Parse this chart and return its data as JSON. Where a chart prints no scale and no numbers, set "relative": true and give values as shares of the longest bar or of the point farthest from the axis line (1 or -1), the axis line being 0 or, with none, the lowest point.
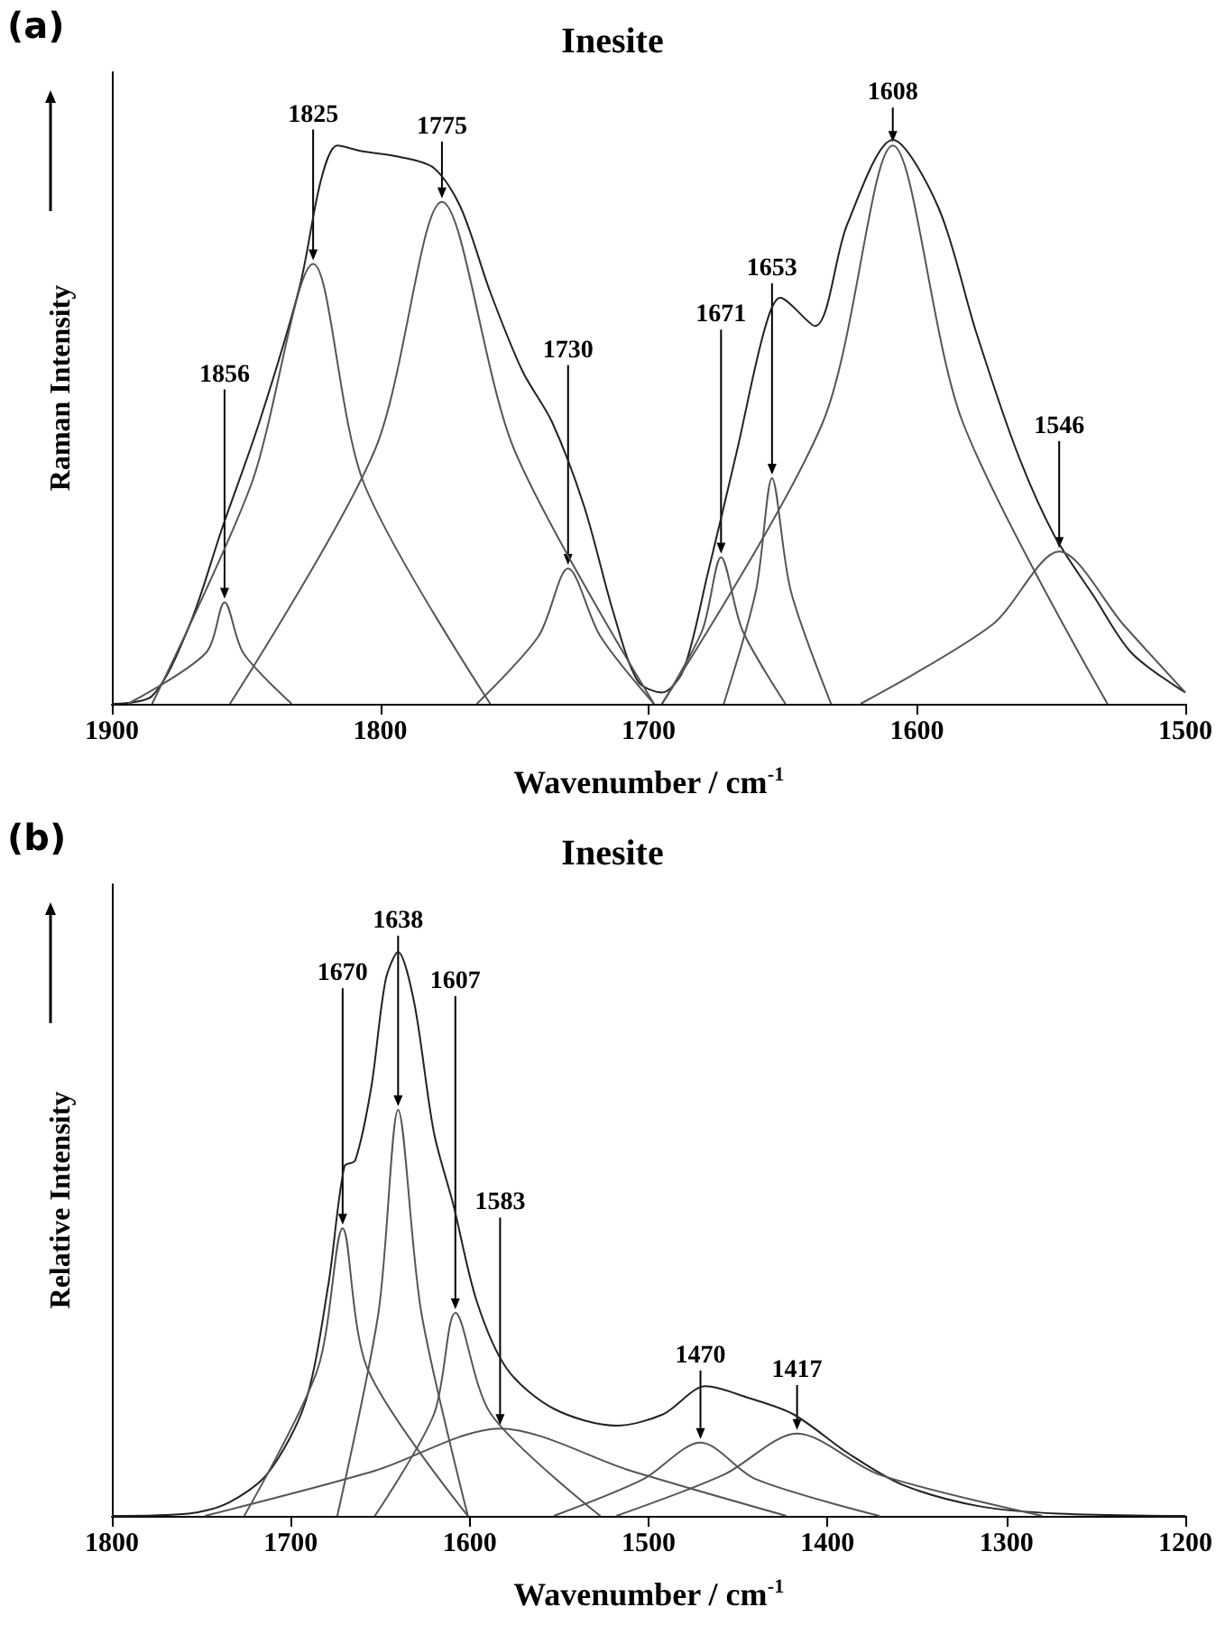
{
  "chart_data": [
    {
      "type": "line",
      "title": "Inesite",
      "xlabel": "Wavenumber / cm$^{-1}$",
      "ylabel": "Raman Intensity",
      "relative": true,
      "xlim": [
        1900,
        1500
      ],
      "xticks": [
        1900,
        1800,
        1700,
        1600,
        1500
      ],
      "annotations": [
        "(a)",
        {
          "text": "1856",
          "x": 1858,
          "y": 0.18
        },
        {
          "text": "1825",
          "x": 1825,
          "y": 0.78
        },
        {
          "text": "1775",
          "x": 1777,
          "y": 0.89
        },
        {
          "text": "1730",
          "x": 1730,
          "y": 0.24
        },
        {
          "text": "1671",
          "x": 1673,
          "y": 0.26
        },
        {
          "text": "1653",
          "x": 1654,
          "y": 0.4
        },
        {
          "text": "1608",
          "x": 1609,
          "y": 0.99
        },
        {
          "text": "1546",
          "x": 1547,
          "y": 0.27
        }
      ],
      "series": [
        {
          "color": "#222222",
          "x": [
            1900,
            1885,
            1871,
            1859,
            1845,
            1830,
            1822,
            1816,
            1807,
            1793,
            1780,
            1770,
            1759,
            1747,
            1736,
            1724,
            1713,
            1704,
            1695,
            1687,
            1678,
            1667,
            1657,
            1651,
            1638,
            1626,
            1609,
            1592,
            1578,
            1563,
            1549,
            1534,
            1520,
            1500
          ],
          "values": [
            0,
            0.014,
            0.14,
            0.31,
            0.5,
            0.74,
            0.93,
            0.99,
            0.98,
            0.97,
            0.95,
            0.88,
            0.73,
            0.59,
            0.5,
            0.35,
            0.16,
            0.04,
            0.02,
            0.06,
            0.23,
            0.45,
            0.66,
            0.72,
            0.67,
            0.85,
            1,
            0.88,
            0.66,
            0.45,
            0.3,
            0.19,
            0.09,
            0.02
          ]
        },
        {
          "color": "#555555",
          "x": [
            1894,
            1865,
            1858,
            1851,
            1833
          ],
          "values": [
            0,
            0.09,
            0.18,
            0.09,
            0
          ]
        },
        {
          "color": "#555555",
          "x": [
            1885,
            1848,
            1825,
            1806,
            1759
          ],
          "values": [
            0,
            0.39,
            0.78,
            0.39,
            0
          ]
        },
        {
          "color": "#555555",
          "x": [
            1856,
            1802,
            1777,
            1750,
            1698
          ],
          "values": [
            0,
            0.45,
            0.89,
            0.45,
            0
          ]
        },
        {
          "color": "#555555",
          "x": [
            1764,
            1741,
            1730,
            1718,
            1698
          ],
          "values": [
            0,
            0.12,
            0.24,
            0.12,
            0
          ]
        },
        {
          "color": "#555555",
          "x": [
            1695,
            1680,
            1673,
            1665,
            1649
          ],
          "values": [
            0,
            0.13,
            0.26,
            0.13,
            0
          ]
        },
        {
          "color": "#555555",
          "x": [
            1672,
            1660,
            1654,
            1647,
            1632
          ],
          "values": [
            0,
            0.2,
            0.4,
            0.2,
            0
          ]
        },
        {
          "color": "#555555",
          "x": [
            1695,
            1635,
            1609,
            1583,
            1529
          ],
          "values": [
            0,
            0.5,
            0.99,
            0.5,
            0
          ]
        },
        {
          "color": "#555555",
          "x": [
            1621,
            1572,
            1547,
            1523,
            1500
          ],
          "values": [
            0,
            0.14,
            0.27,
            0.14,
            0.02
          ]
        }
      ]
    },
    {
      "type": "line",
      "title": "Inesite",
      "xlabel": "Wavenumber / cm$^{-1}$",
      "ylabel": "Relative Intensity",
      "relative": true,
      "xlim": [
        1800,
        1200
      ],
      "xticks": [
        1800,
        1700,
        1600,
        1500,
        1400,
        1300,
        1200
      ],
      "annotations": [
        "(b)",
        {
          "text": "1670",
          "x": 1671,
          "y": 0.51
        },
        {
          "text": "1638",
          "x": 1640,
          "y": 0.72
        },
        {
          "text": "1607",
          "x": 1608,
          "y": 0.36
        },
        {
          "text": "1583",
          "x": 1583,
          "y": 0.155
        },
        {
          "text": "1470",
          "x": 1471,
          "y": 0.13
        },
        {
          "text": "1417",
          "x": 1417,
          "y": 0.146
        }
      ],
      "series": [
        {
          "color": "#222222",
          "x": [
            1800,
            1757,
            1735,
            1713,
            1692,
            1679,
            1670,
            1664,
            1655,
            1647,
            1640,
            1631,
            1620,
            1609,
            1596,
            1579,
            1553,
            1518,
            1492,
            1468,
            1445,
            1419,
            1388,
            1358,
            1315,
            1271,
            1200
          ],
          "values": [
            0,
            0.004,
            0.023,
            0.075,
            0.2,
            0.41,
            0.62,
            0.63,
            0.76,
            0.95,
            1,
            0.91,
            0.68,
            0.55,
            0.38,
            0.26,
            0.19,
            0.16,
            0.18,
            0.23,
            0.21,
            0.18,
            0.11,
            0.055,
            0.017,
            0.004,
            0
          ]
        },
        {
          "color": "#555555",
          "x": [
            1726,
            1685,
            1671,
            1657,
            1601
          ],
          "values": [
            0,
            0.26,
            0.51,
            0.26,
            0
          ]
        },
        {
          "color": "#555555",
          "x": [
            1674,
            1651,
            1640,
            1627,
            1601
          ],
          "values": [
            0,
            0.36,
            0.72,
            0.36,
            0
          ]
        },
        {
          "color": "#555555",
          "x": [
            1653,
            1620,
            1608,
            1588,
            1527
          ],
          "values": [
            0,
            0.18,
            0.36,
            0.18,
            0
          ]
        },
        {
          "color": "#555555",
          "x": [
            1748,
            1653,
            1583,
            1510,
            1423
          ],
          "values": [
            0,
            0.08,
            0.155,
            0.08,
            0
          ]
        },
        {
          "color": "#555555",
          "x": [
            1553,
            1503,
            1471,
            1440,
            1371
          ],
          "values": [
            0,
            0.065,
            0.13,
            0.065,
            0
          ]
        },
        {
          "color": "#555555",
          "x": [
            1518,
            1458,
            1417,
            1371,
            1280
          ],
          "values": [
            0,
            0.073,
            0.146,
            0.073,
            0
          ]
        }
      ]
    }
  ]
}
